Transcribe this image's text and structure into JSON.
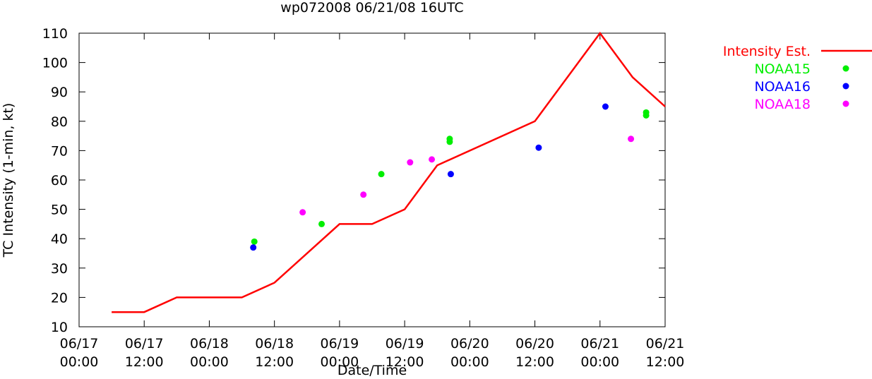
{
  "chart_data": {
    "type": "line",
    "title": "wp072008 06/21/08 16UTC",
    "xlabel": "Date/Time",
    "ylabel": "TC Intensity (1-min, kt)",
    "x_units": "hours since 06/17 00:00",
    "xlim": [
      0,
      108
    ],
    "ylim": [
      10,
      110
    ],
    "y_ticks": [
      10,
      20,
      30,
      40,
      50,
      60,
      70,
      80,
      90,
      100,
      110
    ],
    "x_ticks": [
      {
        "x": 0,
        "label": [
          "06/17",
          "00:00"
        ]
      },
      {
        "x": 12,
        "label": [
          "06/17",
          "12:00"
        ]
      },
      {
        "x": 24,
        "label": [
          "06/18",
          "00:00"
        ]
      },
      {
        "x": 36,
        "label": [
          "06/18",
          "12:00"
        ]
      },
      {
        "x": 48,
        "label": [
          "06/19",
          "00:00"
        ]
      },
      {
        "x": 60,
        "label": [
          "06/19",
          "12:00"
        ]
      },
      {
        "x": 72,
        "label": [
          "06/20",
          "00:00"
        ]
      },
      {
        "x": 84,
        "label": [
          "06/20",
          "12:00"
        ]
      },
      {
        "x": 96,
        "label": [
          "06/21",
          "00:00"
        ]
      },
      {
        "x": 108,
        "label": [
          "06/21",
          "12:00"
        ]
      }
    ],
    "grid": false,
    "legend_position": "outside-right-top",
    "series": [
      {
        "name": "Intensity Est.",
        "kind": "line",
        "color": "#ff0000",
        "x": [
          6,
          12,
          18,
          30,
          36,
          48,
          54,
          60,
          66,
          84,
          96,
          102,
          108
        ],
        "y": [
          15,
          15,
          20,
          20,
          25,
          45,
          45,
          50,
          65,
          80,
          110,
          95,
          85
        ]
      },
      {
        "name": "NOAA15",
        "kind": "points",
        "color": "#00ee00",
        "x": [
          32.3,
          44.7,
          55.7,
          68.3,
          68.3,
          104.5,
          104.5
        ],
        "y": [
          39,
          45,
          62,
          74,
          73,
          83,
          82
        ]
      },
      {
        "name": "NOAA16",
        "kind": "points",
        "color": "#0000ff",
        "x": [
          32.1,
          68.5,
          84.7,
          97
        ],
        "y": [
          37,
          62,
          71,
          85
        ]
      },
      {
        "name": "NOAA18",
        "kind": "points",
        "color": "#ff00ff",
        "x": [
          41.2,
          52.4,
          61,
          65,
          101.7
        ],
        "y": [
          49,
          55,
          66,
          67,
          74
        ]
      }
    ]
  }
}
